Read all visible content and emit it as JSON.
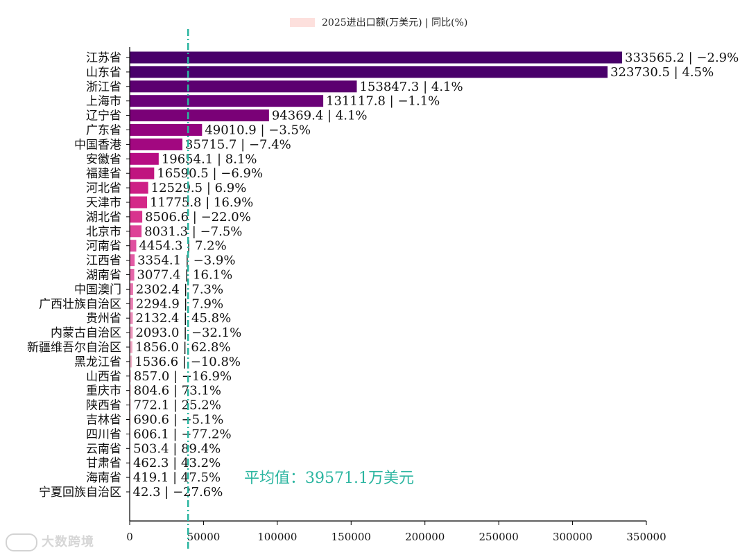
{
  "chart_data": {
    "type": "bar",
    "orientation": "horizontal",
    "legend": {
      "label": "2025进出口额(万美元) | 同比(%)",
      "color": "#fde0dd",
      "placement": "top-center"
    },
    "categories": [
      "江苏省",
      "山东省",
      "浙江省",
      "上海市",
      "辽宁省",
      "广东省",
      "中国香港",
      "安徽省",
      "福建省",
      "河北省",
      "天津市",
      "湖北省",
      "北京市",
      "河南省",
      "江西省",
      "湖南省",
      "中国澳门",
      "广西壮族自治区",
      "贵州省",
      "内蒙古自治区",
      "新疆维吾尔自治区",
      "黑龙江省",
      "山西省",
      "重庆市",
      "陕西省",
      "吉林省",
      "四川省",
      "云南省",
      "甘肃省",
      "海南省",
      "宁夏回族自治区"
    ],
    "values": [
      333565.2,
      323730.5,
      153847.3,
      131117.8,
      94369.4,
      49010.9,
      35715.7,
      19654.1,
      16590.5,
      12529.5,
      11775.8,
      8506.6,
      8031.3,
      4454.3,
      3354.1,
      3077.4,
      2302.4,
      2294.9,
      2132.4,
      2093.0,
      1856.0,
      1536.6,
      857.0,
      804.6,
      772.1,
      690.6,
      606.1,
      503.4,
      462.3,
      419.1,
      42.3
    ],
    "value_labels": [
      "333565.2",
      "323730.5",
      "153847.3",
      "131117.8",
      "94369.4",
      "49010.9",
      "35715.7",
      "19654.1",
      "16590.5",
      "12529.5",
      "11775.8",
      "8506.6",
      "8031.3",
      "4454.3",
      "3354.1",
      "3077.4",
      "2302.4",
      "2294.9",
      "2132.4",
      "2093.0",
      "1856.0",
      "1536.6",
      "857.0",
      "804.6",
      "772.1",
      "690.6",
      "606.1",
      "503.4",
      "462.3",
      "419.1",
      "42.3"
    ],
    "yoy_labels": [
      "−2.9%",
      "4.5%",
      "4.1%",
      "−1.1%",
      "4.1%",
      "−3.5%",
      "−7.4%",
      "8.1%",
      "−6.9%",
      "6.9%",
      "16.9%",
      "−22.0%",
      "−7.5%",
      "7.2%",
      "−3.9%",
      "16.1%",
      "7.3%",
      "7.9%",
      "45.8%",
      "−32.1%",
      "62.8%",
      "−10.8%",
      "−16.9%",
      "73.1%",
      "25.2%",
      "−5.1%",
      "−77.2%",
      "89.4%",
      "43.2%",
      "47.5%",
      "−27.6%"
    ],
    "colors": [
      "#49006a",
      "#49006a",
      "#5c0070",
      "#6a0177",
      "#7a0177",
      "#93037e",
      "#a20880",
      "#b70d83",
      "#c0147f",
      "#cd1f85",
      "#d42888",
      "#d8338e",
      "#de4197",
      "#e04f9f",
      "#e35ba5",
      "#e667aa",
      "#e874ae",
      "#ea80b3",
      "#ec8db9",
      "#ee99be",
      "#f0a6c3",
      "#f1b2c8",
      "#f3bdcc",
      "#f5c5cf",
      "#f6cad2",
      "#f7cfd5",
      "#f8d3d8",
      "#f9d8db",
      "#fad9dd",
      "#fbdddf",
      "#fde0dd"
    ],
    "xlim": [
      0,
      350000
    ],
    "xticks": [
      "0",
      "50000",
      "100000",
      "150000",
      "200000",
      "250000",
      "300000",
      "350000"
    ],
    "average": {
      "value": 39571.1,
      "label": "平均值：39571.1万美元",
      "color": "#2bb5a0"
    },
    "grid": false
  },
  "watermark": "大数跨境"
}
